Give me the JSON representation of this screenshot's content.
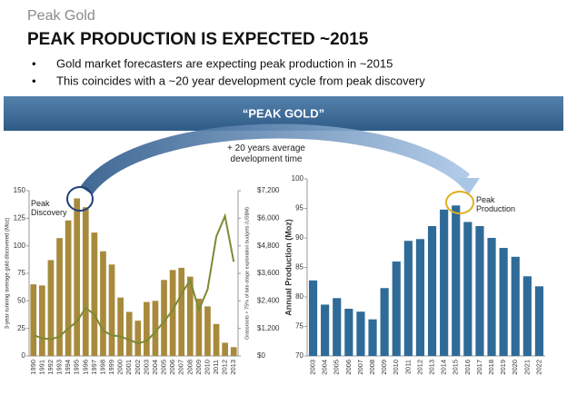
{
  "header": {
    "kicker": "Peak Gold",
    "title": "PEAK PRODUCTION IS EXPECTED ~2015"
  },
  "bullets": [
    "Gold market forecasters are expecting peak production in ~2015",
    "This coincides with a ~20 year development cycle from peak discovery"
  ],
  "banner": "“PEAK GOLD”",
  "note": "+ 20 years average development time",
  "chart_data": [
    {
      "type": "bar",
      "ylabel": "3-year running average gold discovered (Moz)",
      "y2label": "Grassroots + 75% of late-stage exploration budgets (US$M)",
      "annotation": "Peak Discovery",
      "categories": [
        "1990",
        "1991",
        "1992",
        "1993",
        "1994",
        "1995",
        "1996",
        "1997",
        "1998",
        "1999",
        "2000",
        "2001",
        "2002",
        "2003",
        "2004",
        "2005",
        "2006",
        "2007",
        "2008",
        "2009",
        "2010",
        "2011",
        "2012",
        "2013"
      ],
      "series": [
        {
          "type": "bar",
          "color": "#a88a3c",
          "values": [
            65,
            64,
            87,
            107,
            123,
            143,
            135,
            112,
            95,
            83,
            53,
            40,
            32,
            49,
            50,
            69,
            78,
            80,
            72,
            52,
            45,
            29,
            12,
            8
          ]
        },
        {
          "type": "line",
          "axis": "y2",
          "color": "#7d8a35",
          "values": [
            900,
            780,
            720,
            850,
            1200,
            1500,
            2100,
            1800,
            1100,
            900,
            850,
            700,
            550,
            650,
            1050,
            1500,
            2000,
            2700,
            3300,
            2000,
            2900,
            5200,
            6100,
            4100
          ]
        }
      ],
      "ylim": [
        0,
        150
      ],
      "yticks": [
        0,
        25,
        50,
        75,
        100,
        125,
        150
      ],
      "y2lim": [
        0,
        7200
      ],
      "y2ticks": [
        {
          "value": 0,
          "label": "$0"
        },
        {
          "value": 1200,
          "label": "$1,200"
        },
        {
          "value": 2400,
          "label": "$2,400"
        },
        {
          "value": 3600,
          "label": "$3,600"
        },
        {
          "value": 4800,
          "label": "$4,800"
        },
        {
          "value": 6000,
          "label": "$6,000"
        },
        {
          "value": 7200,
          "label": "$7,200"
        }
      ],
      "grid": false
    },
    {
      "type": "bar",
      "ylabel": "Annual Production (Moz)",
      "annotation": "Peak Production",
      "categories": [
        "2003",
        "2004",
        "2005",
        "2006",
        "2007",
        "2008",
        "2009",
        "2010",
        "2011",
        "2012",
        "2013",
        "2014",
        "2015",
        "2016",
        "2017",
        "2018",
        "2019",
        "2020",
        "2021",
        "2022"
      ],
      "values": [
        82.8,
        78.7,
        79.8,
        78,
        77.5,
        76.2,
        81.5,
        86,
        89.5,
        89.8,
        92,
        94.8,
        95.5,
        92.7,
        92,
        90,
        88.3,
        86.8,
        83.5,
        81.8
      ],
      "color": "#2f6b98",
      "ylim": [
        70,
        100
      ],
      "yticks": [
        70,
        75,
        80,
        85,
        90,
        95,
        100
      ],
      "grid": false
    }
  ]
}
